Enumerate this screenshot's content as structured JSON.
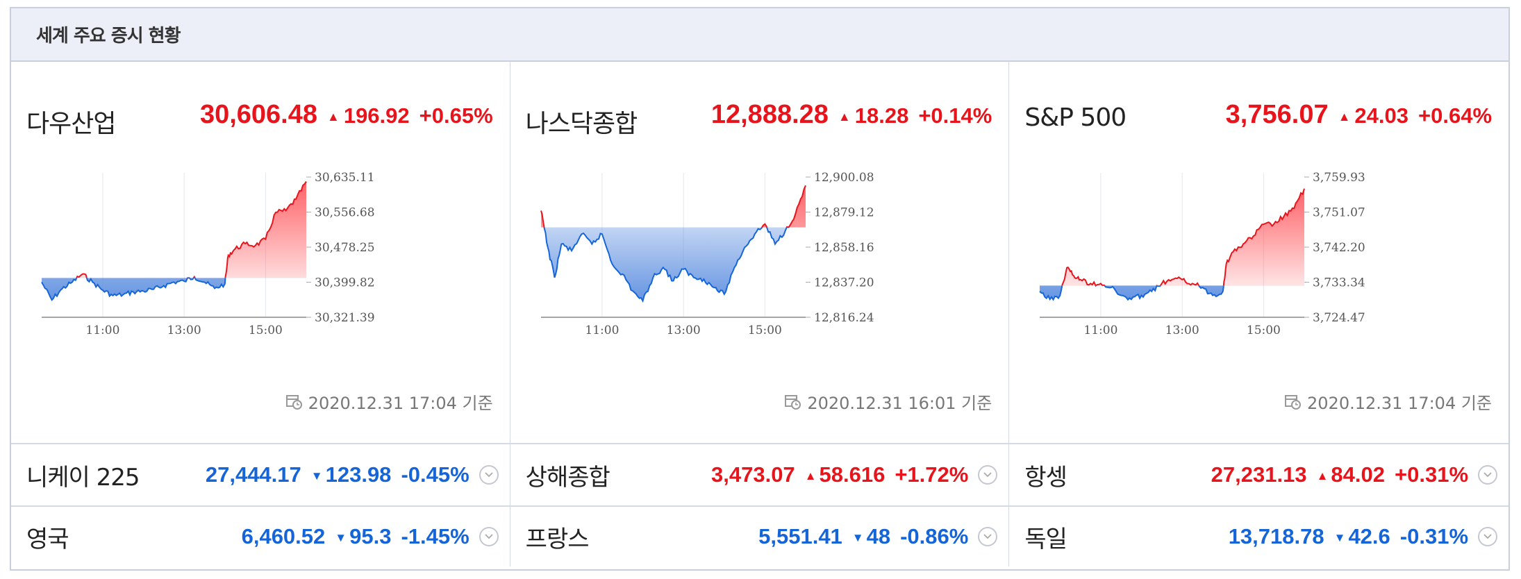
{
  "header": {
    "title": "세계 주요 증시 현황"
  },
  "panels": [
    {
      "name": "다우산업",
      "value": "30,606.48",
      "change": "196.92",
      "pct": "+0.65%",
      "direction": "up",
      "timestamp": "2020.12.31 17:04 기준"
    },
    {
      "name": "나스닥종합",
      "value": "12,888.28",
      "change": "18.28",
      "pct": "+0.14%",
      "direction": "up",
      "timestamp": "2020.12.31 16:01 기준"
    },
    {
      "name": "S&P 500",
      "value": "3,756.07",
      "change": "24.03",
      "pct": "+0.64%",
      "direction": "up",
      "timestamp": "2020.12.31 17:04 기준"
    }
  ],
  "rows": [
    [
      {
        "name": "니케이 225",
        "value": "27,444.17",
        "change": "123.98",
        "pct": "-0.45%",
        "direction": "down"
      },
      {
        "name": "상해종합",
        "value": "3,473.07",
        "change": "58.616",
        "pct": "+1.72%",
        "direction": "up"
      },
      {
        "name": "항셍",
        "value": "27,231.13",
        "change": "84.02",
        "pct": "+0.31%",
        "direction": "up"
      }
    ],
    [
      {
        "name": "영국",
        "value": "6,460.52",
        "change": "95.3",
        "pct": "-1.45%",
        "direction": "down"
      },
      {
        "name": "프랑스",
        "value": "5,551.41",
        "change": "48",
        "pct": "-0.86%",
        "direction": "down"
      },
      {
        "name": "독일",
        "value": "13,718.78",
        "change": "42.6",
        "pct": "-0.31%",
        "direction": "down"
      }
    ]
  ],
  "icons": {
    "up": "triangle-up-icon",
    "down": "triangle-down-icon",
    "clock": "calendar-clock-icon",
    "expand": "chevron-down-circle-icon"
  },
  "colors": {
    "up": "#e8141c",
    "down": "#1565d8",
    "up_fill": "#ff5a5f",
    "down_fill": "#5d8fe0"
  },
  "chart_data": [
    {
      "type": "area",
      "title": "다우산업",
      "x_labels": [
        "11:00",
        "13:00",
        "15:00"
      ],
      "y_ticks": [
        "30,635.11",
        "30,556.68",
        "30,478.25",
        "30,399.82",
        "30,321.39"
      ],
      "ylim": [
        30321.39,
        30635.11
      ],
      "x_range": [
        "09:30",
        "16:00"
      ],
      "baseline": 30409.56,
      "series": [
        {
          "x": [
            "09:30",
            "09:45",
            "10:00",
            "10:15",
            "10:30",
            "10:45",
            "11:00",
            "11:15",
            "11:30",
            "11:45",
            "12:00",
            "12:15",
            "12:30",
            "12:45",
            "13:00",
            "13:15",
            "13:30",
            "13:45",
            "14:00",
            "14:05",
            "14:15",
            "14:30",
            "14:45",
            "15:00",
            "15:15",
            "15:30",
            "15:45",
            "16:00"
          ],
          "values": [
            30400,
            30360,
            30385,
            30400,
            30418,
            30400,
            30382,
            30370,
            30372,
            30378,
            30380,
            30384,
            30392,
            30400,
            30402,
            30412,
            30400,
            30386,
            30396,
            30460,
            30474,
            30486,
            30482,
            30496,
            30556,
            30560,
            30586,
            30625
          ]
        }
      ]
    },
    {
      "type": "area",
      "title": "나스닥종합",
      "x_labels": [
        "11:00",
        "13:00",
        "15:00"
      ],
      "y_ticks": [
        "12,900.08",
        "12,879.12",
        "12,858.16",
        "12,837.20",
        "12,816.24"
      ],
      "ylim": [
        12816.24,
        12900.08
      ],
      "x_range": [
        "09:30",
        "16:00"
      ],
      "baseline": 12870.0,
      "series": [
        {
          "x": [
            "09:30",
            "09:40",
            "09:50",
            "10:00",
            "10:15",
            "10:30",
            "10:45",
            "11:00",
            "11:15",
            "11:30",
            "11:45",
            "12:00",
            "12:15",
            "12:30",
            "12:45",
            "13:00",
            "13:15",
            "13:30",
            "13:45",
            "14:00",
            "14:15",
            "14:30",
            "14:45",
            "15:00",
            "15:15",
            "15:30",
            "15:45",
            "16:00"
          ],
          "values": [
            12880,
            12858,
            12840,
            12860,
            12856,
            12866,
            12860,
            12866,
            12848,
            12842,
            12832,
            12826,
            12840,
            12846,
            12838,
            12845,
            12840,
            12839,
            12834,
            12830,
            12846,
            12858,
            12866,
            12872,
            12860,
            12868,
            12878,
            12895
          ]
        }
      ]
    },
    {
      "type": "area",
      "title": "S&P 500",
      "x_labels": [
        "11:00",
        "13:00",
        "15:00"
      ],
      "y_ticks": [
        "3,759.93",
        "3,751.07",
        "3,742.20",
        "3,733.34",
        "3,724.47"
      ],
      "ylim": [
        3724.47,
        3759.93
      ],
      "x_range": [
        "09:30",
        "16:00"
      ],
      "baseline": 3732.5,
      "series": [
        {
          "x": [
            "09:30",
            "09:45",
            "10:00",
            "10:10",
            "10:20",
            "10:30",
            "10:45",
            "11:00",
            "11:15",
            "11:30",
            "11:45",
            "12:00",
            "12:15",
            "12:30",
            "12:45",
            "13:00",
            "13:15",
            "13:30",
            "13:45",
            "14:00",
            "14:05",
            "14:15",
            "14:30",
            "14:45",
            "15:00",
            "15:15",
            "15:30",
            "15:45",
            "16:00"
          ],
          "values": [
            3731,
            3729,
            3730,
            3737,
            3735,
            3734,
            3733,
            3733,
            3732,
            3730,
            3729,
            3730,
            3731,
            3733,
            3734,
            3734,
            3733,
            3732,
            3730,
            3731,
            3738,
            3741,
            3743,
            3745,
            3748,
            3748,
            3750,
            3752,
            3757
          ]
        }
      ]
    }
  ]
}
